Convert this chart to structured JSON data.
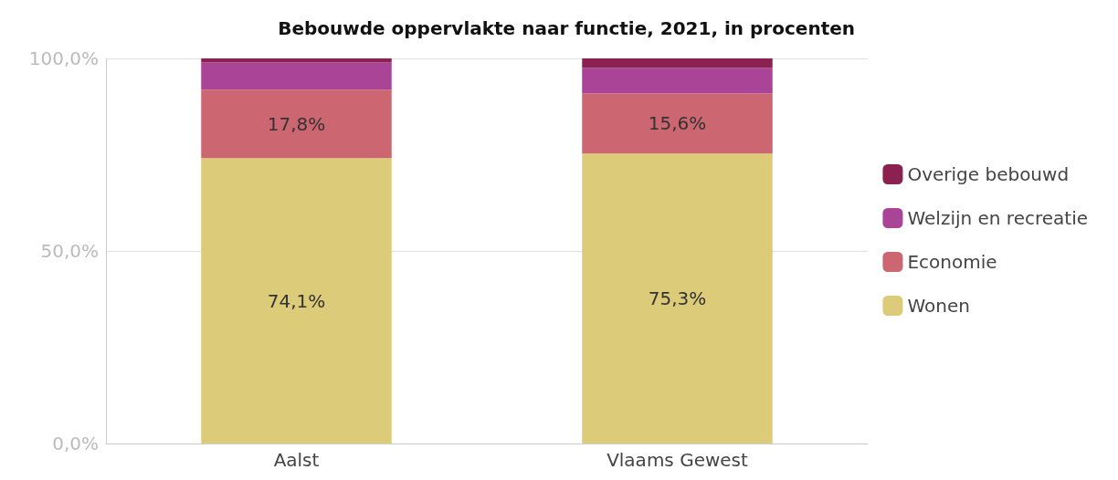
{
  "chart_data": {
    "type": "bar",
    "stacked": true,
    "title": "Bebouwde oppervlakte naar functie, 2021, in procenten",
    "categories": [
      "Aalst",
      "Vlaams Gewest"
    ],
    "series": [
      {
        "name": "Wonen",
        "color": "#dccb78",
        "values": [
          74.1,
          75.3
        ],
        "value_labels": [
          "74,1%",
          "75,3%"
        ]
      },
      {
        "name": "Economie",
        "color": "#cc6670",
        "values": [
          17.8,
          15.6
        ],
        "value_labels": [
          "17,8%",
          "15,6%"
        ]
      },
      {
        "name": "Welzijn en recreatie",
        "color": "#a94496",
        "values": [
          7.1,
          6.6
        ],
        "value_labels": [
          null,
          null
        ]
      },
      {
        "name": "Overige bebouwd",
        "color": "#8a2150",
        "values": [
          1.0,
          2.5
        ],
        "value_labels": [
          null,
          null
        ]
      }
    ],
    "ylim": [
      0,
      100
    ],
    "yticks": [
      {
        "value": 0,
        "label": "0,0%"
      },
      {
        "value": 50,
        "label": "50,0%"
      },
      {
        "value": 100,
        "label": "100,0%"
      }
    ],
    "grid": "y",
    "legend": "right"
  }
}
